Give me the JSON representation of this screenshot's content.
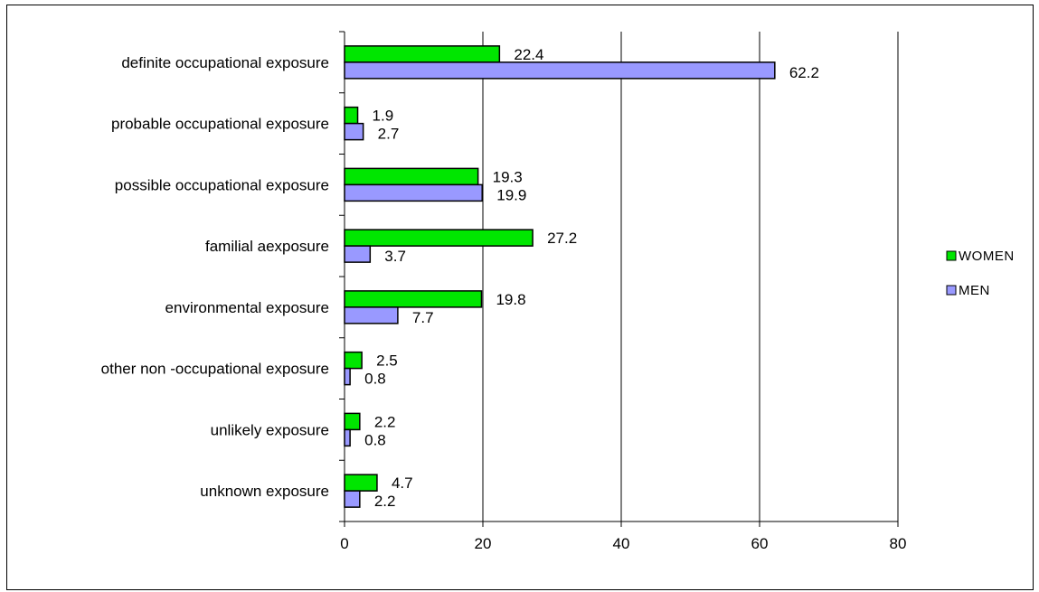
{
  "chart_data": {
    "type": "bar",
    "orientation": "horizontal",
    "categories": [
      "definite occupational exposure",
      "probable occupational exposure",
      "possible occupational exposure",
      "familial aexposure",
      "environmental exposure",
      "other non -occupational exposure",
      "unlikely exposure",
      "unknown exposure"
    ],
    "series": [
      {
        "name": "WOMEN",
        "color": "#00e600",
        "values": [
          22.4,
          1.9,
          19.3,
          27.2,
          19.8,
          2.5,
          2.2,
          4.7
        ]
      },
      {
        "name": "MEN",
        "color": "#9999ff",
        "values": [
          62.2,
          2.7,
          19.9,
          3.7,
          7.7,
          0.8,
          0.8,
          2.2
        ]
      }
    ],
    "xlim": [
      0,
      80
    ],
    "xticks": [
      "0",
      "20",
      "40",
      "60",
      "80"
    ],
    "grid": "vertical major gridlines",
    "legend": "right"
  }
}
